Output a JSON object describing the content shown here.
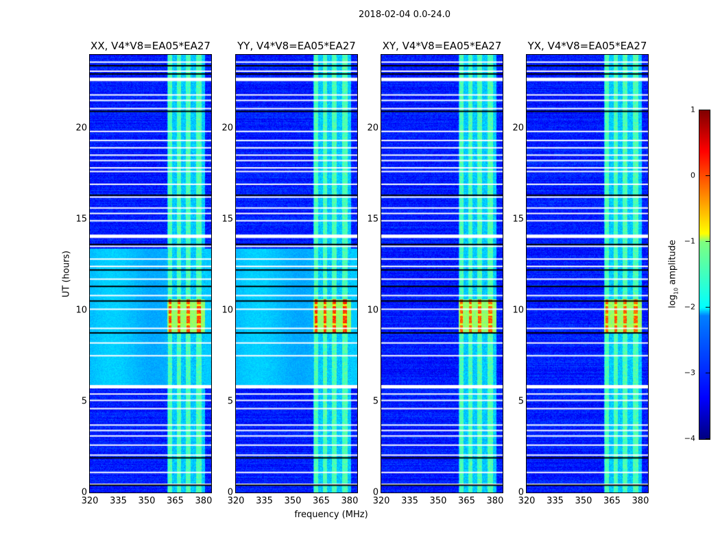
{
  "chart_data": {
    "type": "heatmap",
    "title": "2018-02-04 0.0-24.0",
    "xlabel": "frequency (MHz)",
    "ylabel": "UT (hours)",
    "xlim": [
      320,
      384
    ],
    "ylim": [
      0,
      24
    ],
    "xticks": [
      "320",
      "335",
      "350",
      "365",
      "380"
    ],
    "yticks": [
      "0",
      "5",
      "10",
      "15",
      "20"
    ],
    "panels": [
      {
        "title": "XX, V4*V8=EA05*EA27",
        "peak_log_amp": 0.3,
        "diffuse_bg": true
      },
      {
        "title": "YY, V4*V8=EA05*EA27",
        "peak_log_amp": 0.4,
        "diffuse_bg": true
      },
      {
        "title": "XY, V4*V8=EA05*EA27",
        "peak_log_amp": 0.2,
        "diffuse_bg": false
      },
      {
        "title": "YX, V4*V8=EA05*EA27",
        "peak_log_amp": 0.2,
        "diffuse_bg": false
      }
    ],
    "rfi_band_mhz": [
      [
        361,
        363.3
      ],
      [
        365.8,
        368
      ],
      [
        370.5,
        373.1
      ],
      [
        376,
        378.9
      ]
    ],
    "rfi_envelope_mhz": [
      360.7,
      380.4
    ],
    "strong_event_ut": [
      8.8,
      10.6
    ],
    "flagged_ut_white": [
      0.45,
      1.1,
      2.05,
      2.6,
      3.1,
      3.4,
      3.7,
      4.6,
      5.05,
      5.4,
      5.8,
      7.5,
      8.2,
      9.0,
      10.05,
      10.8,
      11.7,
      12.4,
      12.8,
      13.5,
      14.05,
      14.9,
      15.3,
      15.6,
      16.2,
      16.9,
      17.6,
      17.8,
      18.2,
      18.5,
      18.9,
      19.3,
      19.8,
      21.05,
      21.5,
      21.8,
      22.65,
      23.1,
      23.6
    ],
    "flagged_ut_black": [
      0.4,
      1.9,
      8.75,
      10.5,
      11.3,
      12.2,
      13.6,
      16.3,
      20.9,
      22.95,
      23.4
    ],
    "colorbar": {
      "label": "log10 amplitude",
      "label_main": "log",
      "label_sub": "10",
      "label_rest": " amplitude",
      "range": [
        -4,
        1
      ],
      "ticks": [
        "1",
        "0",
        "−1",
        "−2",
        "−3",
        "−4"
      ],
      "colormap": "jet"
    }
  }
}
